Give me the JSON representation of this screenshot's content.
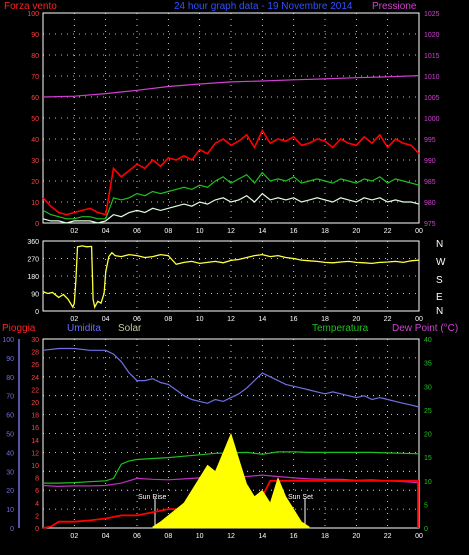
{
  "header": {
    "left_label": "Forza vento",
    "title": "24 hour graph data - 19 Novembre 2014",
    "right_label": "Pressione"
  },
  "bottom_header": {
    "rain": "Pioggia",
    "humidity": "Umidita",
    "solar": "Solar",
    "temperature": "Temperatura",
    "dewpoint": "Dew Point (°C)"
  },
  "compass": [
    "N",
    "W",
    "S",
    "E",
    "N"
  ],
  "annotations": {
    "sunrise": "Sun Rise",
    "sunset": "Sun Set"
  },
  "colors": {
    "wind_gust": "#ff0000",
    "wind_avg": "#20c020",
    "wind_min": "#e0ffe0",
    "pressure": "#d040d0",
    "direction": "#ffff40",
    "humidity": "#7070e0",
    "temperature": "#20c020",
    "dewpoint": "#c030c0",
    "rain": "#ff0000",
    "solar": "#ffff00",
    "grid": "#ffffff"
  },
  "chart_data": [
    {
      "type": "line",
      "x_ticks": [
        "02",
        "04",
        "06",
        "08",
        "10",
        "12",
        "14",
        "16",
        "18",
        "20",
        "22",
        "00"
      ],
      "y_ticks_left": [
        "0",
        "10",
        "20",
        "30",
        "40",
        "50",
        "60",
        "70",
        "80",
        "90",
        "100"
      ],
      "y_ticks_right": [
        "975",
        "980",
        "985",
        "990",
        "995",
        "1000",
        "1005",
        "1010",
        "1015",
        "1020",
        "1025"
      ],
      "ylim": [
        0,
        100
      ],
      "y2lim": [
        975,
        1025
      ],
      "x_range": [
        0,
        24
      ],
      "series": [
        {
          "key": "wind_gust",
          "x": [
            0,
            0.5,
            1,
            1.5,
            2,
            2.5,
            3,
            3.5,
            4,
            4.5,
            5,
            5.5,
            6,
            6.5,
            7,
            7.5,
            8,
            8.5,
            9,
            9.5,
            10,
            10.5,
            11,
            11.5,
            12,
            12.5,
            13,
            13.5,
            14,
            14.5,
            15,
            15.5,
            16,
            16.5,
            17,
            17.5,
            18,
            18.5,
            19,
            19.5,
            20,
            20.5,
            21,
            21.5,
            22,
            22.5,
            23,
            23.5,
            24
          ],
          "values": [
            12,
            8,
            5,
            4,
            5,
            6,
            7,
            5,
            4,
            26,
            22,
            25,
            28,
            26,
            30,
            27,
            31,
            30,
            32,
            30,
            35,
            33,
            38,
            40,
            37,
            39,
            42,
            36,
            44,
            38,
            40,
            39,
            41,
            37,
            38,
            40,
            39,
            36,
            40,
            38,
            37,
            41,
            38,
            42,
            36,
            40,
            38,
            37,
            33
          ]
        },
        {
          "key": "wind_avg",
          "x": [
            0,
            0.5,
            1,
            1.5,
            2,
            2.5,
            3,
            3.5,
            4,
            4.5,
            5,
            5.5,
            6,
            6.5,
            7,
            7.5,
            8,
            8.5,
            9,
            9.5,
            10,
            10.5,
            11,
            11.5,
            12,
            12.5,
            13,
            13.5,
            14,
            14.5,
            15,
            15.5,
            16,
            16.5,
            17,
            17.5,
            18,
            18.5,
            19,
            19.5,
            20,
            20.5,
            21,
            21.5,
            22,
            22.5,
            23,
            23.5,
            24
          ],
          "values": [
            6,
            4,
            3,
            2,
            2,
            3,
            3,
            2,
            2,
            12,
            11,
            12,
            14,
            13,
            15,
            14,
            15,
            16,
            17,
            16,
            18,
            17,
            20,
            22,
            19,
            21,
            23,
            19,
            24,
            20,
            21,
            20,
            22,
            19,
            20,
            21,
            20,
            19,
            21,
            20,
            19,
            21,
            20,
            22,
            19,
            21,
            20,
            19,
            18
          ]
        },
        {
          "key": "wind_min",
          "x": [
            0,
            0.5,
            1,
            1.5,
            2,
            2.5,
            3,
            3.5,
            4,
            4.5,
            5,
            5.5,
            6,
            6.5,
            7,
            7.5,
            8,
            8.5,
            9,
            9.5,
            10,
            10.5,
            11,
            11.5,
            12,
            12.5,
            13,
            13.5,
            14,
            14.5,
            15,
            15.5,
            16,
            16.5,
            17,
            17.5,
            18,
            18.5,
            19,
            19.5,
            20,
            20.5,
            21,
            21.5,
            22,
            22.5,
            23,
            23.5,
            24
          ],
          "values": [
            2,
            1,
            1,
            0,
            1,
            1,
            1,
            0,
            1,
            4,
            3,
            5,
            6,
            5,
            7,
            6,
            7,
            8,
            9,
            8,
            10,
            9,
            11,
            12,
            10,
            11,
            13,
            10,
            14,
            11,
            12,
            11,
            12,
            10,
            11,
            12,
            11,
            10,
            12,
            11,
            10,
            12,
            11,
            12,
            10,
            11,
            10,
            10,
            9
          ]
        },
        {
          "key": "pressure",
          "axis": "right",
          "x": [
            0,
            2,
            4,
            6,
            8,
            10,
            12,
            14,
            16,
            18,
            20,
            22,
            24
          ],
          "values": [
            1005,
            1005.2,
            1005.8,
            1006.6,
            1007.5,
            1008.1,
            1008.6,
            1008.8,
            1009.1,
            1009.3,
            1009.6,
            1009.8,
            1010.1
          ]
        }
      ]
    },
    {
      "type": "line",
      "x_ticks": [
        "02",
        "04",
        "06",
        "08",
        "10",
        "12",
        "14",
        "16",
        "18",
        "20",
        "22",
        "00"
      ],
      "y_ticks_left": [
        "0",
        "90",
        "180",
        "270",
        "360"
      ],
      "ylim": [
        0,
        360
      ],
      "x_range": [
        0,
        24
      ],
      "series": [
        {
          "key": "direction",
          "x": [
            0,
            0.3,
            0.6,
            1,
            1.3,
            1.6,
            1.9,
            2,
            2.1,
            2.2,
            2.5,
            2.8,
            3.1,
            3.2,
            3.3,
            3.5,
            3.7,
            3.9,
            4,
            4.2,
            4.4,
            4.6,
            5,
            5.5,
            6,
            6.5,
            7,
            7.5,
            8,
            8.5,
            9,
            9.5,
            10,
            10.5,
            11,
            11.5,
            12,
            12.5,
            13,
            13.5,
            14,
            14.5,
            15,
            15.5,
            16,
            16.5,
            17,
            17.5,
            18,
            18.5,
            19,
            19.5,
            20,
            20.5,
            21,
            21.5,
            22,
            22.5,
            23,
            23.5,
            24
          ],
          "values": [
            100,
            90,
            95,
            70,
            85,
            60,
            20,
            40,
            160,
            330,
            335,
            330,
            332,
            60,
            20,
            50,
            40,
            90,
            200,
            280,
            300,
            285,
            280,
            290,
            285,
            275,
            280,
            290,
            285,
            240,
            250,
            255,
            245,
            250,
            255,
            248,
            260,
            265,
            275,
            285,
            290,
            280,
            285,
            275,
            270,
            262,
            258,
            255,
            250,
            248,
            252,
            255,
            250,
            248,
            245,
            250,
            252,
            255,
            250,
            258,
            262
          ]
        }
      ]
    },
    {
      "type": "line",
      "x_ticks": [
        "02",
        "04",
        "06",
        "08",
        "10",
        "12",
        "14",
        "16",
        "18",
        "20",
        "22",
        "00"
      ],
      "y_ticks_rain": [
        "0",
        "2",
        "4",
        "6",
        "8",
        "10",
        "12",
        "14",
        "16",
        "18",
        "20",
        "22",
        "24",
        "26",
        "28",
        "30"
      ],
      "y_ticks_humidity": [
        "0",
        "10",
        "20",
        "30",
        "40",
        "50",
        "60",
        "70",
        "80",
        "90",
        "100"
      ],
      "y_ticks_temp": [
        "0",
        "5",
        "10",
        "15",
        "20",
        "25",
        "30",
        "35",
        "40"
      ],
      "x_range": [
        0,
        24
      ],
      "series": [
        {
          "key": "humidity",
          "x": [
            0,
            1,
            2,
            3,
            4,
            4.5,
            5,
            5.5,
            6,
            6.5,
            7,
            7.5,
            8,
            8.5,
            9,
            9.5,
            10,
            10.5,
            11,
            11.5,
            12,
            12.5,
            13,
            13.5,
            14,
            14.5,
            15,
            15.5,
            16,
            16.5,
            17,
            17.5,
            18,
            18.5,
            19,
            19.5,
            20,
            20.5,
            21,
            21.5,
            22,
            22.5,
            23,
            23.5,
            24
          ],
          "values": [
            94,
            95,
            95,
            94,
            94,
            92,
            88,
            82,
            78,
            78,
            79,
            77,
            76,
            73,
            70,
            68,
            67,
            66,
            68,
            67,
            69,
            71,
            74,
            78,
            82,
            80,
            78,
            76,
            75,
            74,
            73,
            72,
            71,
            72,
            71,
            70,
            69,
            70,
            68,
            69,
            68,
            67,
            66,
            65,
            64
          ]
        },
        {
          "key": "temperature",
          "axis": "temp",
          "x": [
            0,
            1,
            2,
            3,
            4,
            4.5,
            5,
            5.5,
            6,
            7,
            8,
            9,
            10,
            11,
            12,
            13,
            14,
            15,
            16,
            17,
            18,
            19,
            20,
            21,
            22,
            23,
            24
          ],
          "values": [
            9.5,
            9.5,
            9.6,
            9.8,
            10,
            10.5,
            13.5,
            14.2,
            14.5,
            14.7,
            14.9,
            15.2,
            15.5,
            15.8,
            15.9,
            16,
            15.6,
            16.1,
            16.1,
            16,
            16,
            16,
            16,
            16,
            15.9,
            15.8,
            15.7
          ]
        },
        {
          "key": "dewpoint",
          "axis": "temp",
          "x": [
            0,
            1,
            2,
            3,
            4,
            5,
            6,
            7,
            8,
            9,
            10,
            11,
            12,
            13,
            14,
            15,
            16,
            17,
            18,
            19,
            20,
            21,
            22,
            23,
            24
          ],
          "values": [
            9,
            8.8,
            8.9,
            8.9,
            9,
            9.5,
            10.5,
            10.3,
            10.2,
            10.4,
            10.6,
            10.8,
            10.7,
            10.9,
            11.2,
            10.9,
            10.6,
            10.4,
            10.3,
            10.3,
            10.1,
            10.2,
            10,
            9.8,
            9.6
          ]
        },
        {
          "key": "rain",
          "axis": "rain",
          "x": [
            0,
            0.5,
            1,
            2,
            3,
            4,
            5,
            6,
            7,
            8,
            9,
            10,
            11,
            12,
            13,
            13.5,
            14,
            14.5,
            15,
            16,
            17,
            18,
            19,
            20,
            21,
            22,
            23,
            24
          ],
          "values": [
            0,
            0.2,
            1,
            1,
            1.2,
            1.5,
            2,
            2,
            2.5,
            3,
            3,
            3,
            3.5,
            4,
            4,
            4.5,
            5,
            7.5,
            7.5,
            7.5,
            7.5,
            7.5,
            7.5,
            7.5,
            7.5,
            7.5,
            7.5,
            7.5
          ]
        },
        {
          "key": "solar",
          "axis": "rain",
          "x": [
            7,
            7.5,
            8,
            8.5,
            9,
            9.5,
            10,
            10.5,
            11,
            11.5,
            12,
            12.5,
            13,
            13.5,
            14,
            14.5,
            15,
            15.5,
            16,
            16.5,
            17
          ],
          "values": [
            0.2,
            1,
            2,
            3,
            4,
            6,
            8,
            10,
            9,
            12,
            15,
            11,
            7,
            5,
            6,
            4,
            8,
            5,
            3,
            1,
            0.2
          ]
        }
      ]
    }
  ]
}
